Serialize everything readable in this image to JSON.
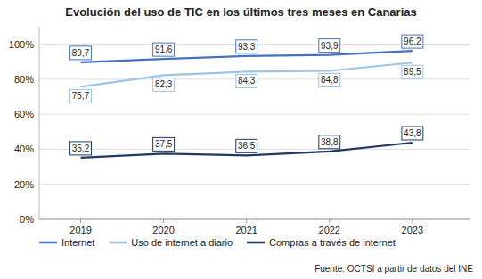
{
  "chart_data": {
    "type": "line",
    "title": "Evolución del uso de TIC en los últimos tres meses en Canarias",
    "x": [
      2019,
      2020,
      2021,
      2022,
      2023
    ],
    "series": [
      {
        "name": "Internet",
        "color": "#4472C4",
        "values": [
          89.7,
          91.6,
          93.3,
          93.9,
          96.2
        ],
        "value_labels": [
          "89,7",
          "91,6",
          "93,3",
          "93,9",
          "96,2"
        ]
      },
      {
        "name": "Uso de internet a diario",
        "color": "#9DC3E6",
        "values": [
          75.7,
          82.3,
          84.3,
          84.8,
          89.5
        ],
        "value_labels": [
          "75,7",
          "82,3",
          "84,3",
          "84,8",
          "89,5"
        ]
      },
      {
        "name": "Compras a través de internet",
        "color": "#1F3864",
        "values": [
          35.2,
          37.5,
          36.5,
          38.8,
          43.8
        ],
        "value_labels": [
          "35,2",
          "37,5",
          "36,5",
          "38,8",
          "43,8"
        ]
      }
    ],
    "xlim": [
      2018.5,
      2023.7
    ],
    "xticks": [
      2019,
      2020,
      2021,
      2022,
      2023
    ],
    "ylim": [
      0,
      110
    ],
    "yticks": [
      {
        "value": 0,
        "label": "0%"
      },
      {
        "value": 20,
        "label": "20%"
      },
      {
        "value": 40,
        "label": "40%"
      },
      {
        "value": 60,
        "label": "60%"
      },
      {
        "value": 80,
        "label": "80%"
      },
      {
        "value": 100,
        "label": "100%"
      }
    ],
    "grid": true,
    "legend": "bottom",
    "data_labels": true,
    "annotations": [
      "Fuente: OCTSI a partir de datos del INE"
    ]
  }
}
